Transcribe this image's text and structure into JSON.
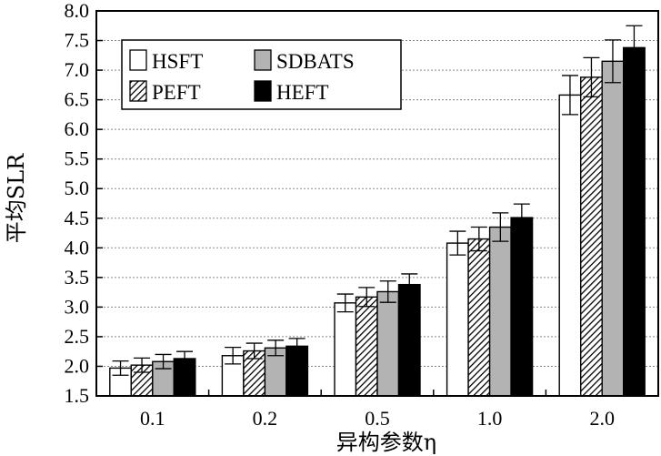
{
  "chart_data": {
    "type": "bar",
    "title": "",
    "xlabel": "异构参数η",
    "ylabel": "平均SLR",
    "categories": [
      "0.1",
      "0.2",
      "0.5",
      "1.0",
      "2.0"
    ],
    "ylim": [
      1.5,
      8.0
    ],
    "yticks": [
      "1.5",
      "2.0",
      "2.5",
      "3.0",
      "3.5",
      "4.0",
      "4.5",
      "5.0",
      "5.5",
      "6.0",
      "6.5",
      "7.0",
      "7.5",
      "8.0"
    ],
    "grid": "horizontal-dotted",
    "legend_position": "top-left",
    "series": [
      {
        "name": "HSFT",
        "fill": "white",
        "values": [
          1.97,
          2.18,
          3.07,
          4.08,
          6.58
        ],
        "errors": [
          0.12,
          0.14,
          0.15,
          0.2,
          0.33
        ]
      },
      {
        "name": "PEFT",
        "fill": "hatched",
        "values": [
          2.02,
          2.26,
          3.17,
          4.15,
          6.88
        ],
        "errors": [
          0.12,
          0.13,
          0.16,
          0.2,
          0.33
        ]
      },
      {
        "name": "SDBATS",
        "fill": "gray",
        "values": [
          2.08,
          2.31,
          3.26,
          4.35,
          7.15
        ],
        "errors": [
          0.12,
          0.13,
          0.18,
          0.24,
          0.36
        ]
      },
      {
        "name": "HEFT",
        "fill": "black",
        "values": [
          2.13,
          2.34,
          3.38,
          4.51,
          7.38
        ],
        "errors": [
          0.12,
          0.13,
          0.18,
          0.23,
          0.37
        ]
      }
    ],
    "legend_order": [
      "HSFT",
      "SDBATS",
      "PEFT",
      "HEFT"
    ]
  },
  "colors": {
    "white": "#ffffff",
    "gray": "#b3b3b3",
    "black": "#000000",
    "axis": "#000000",
    "grid": "#8a8a8a"
  }
}
